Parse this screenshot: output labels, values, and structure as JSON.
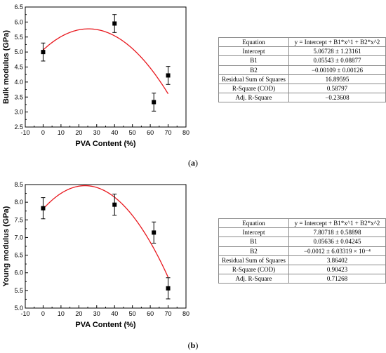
{
  "chart_data": [
    {
      "type": "scatter",
      "panel": "(a)",
      "xlabel": "PVA Content (%)",
      "ylabel": "Bulk modulus (GPa)",
      "xlim": [
        -10,
        80
      ],
      "ylim": [
        2.5,
        6.5
      ],
      "xticks": [
        "-10",
        "0",
        "10",
        "20",
        "30",
        "40",
        "50",
        "60",
        "70",
        "80"
      ],
      "yticks": [
        "2.5",
        "3.0",
        "3.5",
        "4.0",
        "4.5",
        "5.0",
        "5.5",
        "6.0",
        "6.5"
      ],
      "points": [
        {
          "x": 0,
          "y": 5.0,
          "err": 0.3
        },
        {
          "x": 40,
          "y": 5.95,
          "err": 0.3
        },
        {
          "x": 62,
          "y": 3.33,
          "err": 0.3
        },
        {
          "x": 70,
          "y": 4.22,
          "err": 0.3
        }
      ],
      "fit": {
        "type": "polynomial-2",
        "intercept": 5.06728,
        "b1": 0.05543,
        "b2": -0.00109,
        "x_range": [
          0,
          70
        ],
        "color": "#e8181e"
      },
      "marker_color": "#000000",
      "table": [
        [
          "Equation",
          "y = Intercept + B1*x^1 + B2*x^2"
        ],
        [
          "Intercept",
          "5.06728 ± 1.23161"
        ],
        [
          "B1",
          "0.05543 ± 0.08877"
        ],
        [
          "B2",
          "−0.00109 ± 0.00126"
        ],
        [
          "Residual Sum of Squares",
          "16.89595"
        ],
        [
          "R-Square (COD)",
          "0.58797"
        ],
        [
          "Adj. R-Square",
          "−0.23608"
        ]
      ],
      "caption": "(a)"
    },
    {
      "type": "scatter",
      "panel": "(b)",
      "xlabel": "PVA Content (%)",
      "ylabel": "Young modulus (GPa)",
      "xlim": [
        -10,
        80
      ],
      "ylim": [
        5.0,
        8.5
      ],
      "xticks": [
        "-10",
        "0",
        "10",
        "20",
        "30",
        "40",
        "50",
        "60",
        "70",
        "80"
      ],
      "yticks": [
        "5.0",
        "5.5",
        "6.0",
        "6.5",
        "7.0",
        "7.5",
        "8.0",
        "8.5"
      ],
      "points": [
        {
          "x": 0,
          "y": 7.83,
          "err": 0.3
        },
        {
          "x": 40,
          "y": 7.93,
          "err": 0.3
        },
        {
          "x": 62,
          "y": 7.14,
          "err": 0.3
        },
        {
          "x": 70,
          "y": 5.56,
          "err": 0.3
        }
      ],
      "fit": {
        "type": "polynomial-2",
        "intercept": 7.80718,
        "b1": 0.05636,
        "b2": -0.0012,
        "x_range": [
          0,
          70
        ],
        "color": "#e8181e"
      },
      "marker_color": "#000000",
      "table": [
        [
          "Equation",
          "y = Intercept + B1*x^1 + B2*x^2"
        ],
        [
          "Intercept",
          "7.80718 ± 0.58898"
        ],
        [
          "B1",
          "0.05636 ± 0.04245"
        ],
        [
          "B2",
          "−0.0012 ± 6.03319 × 10⁻⁴"
        ],
        [
          "Residual Sum of Squares",
          "3.86402"
        ],
        [
          "R-Square (COD)",
          "0.90423"
        ],
        [
          "Adj. R-Square",
          "0.71268"
        ]
      ],
      "caption": "(b)"
    }
  ]
}
